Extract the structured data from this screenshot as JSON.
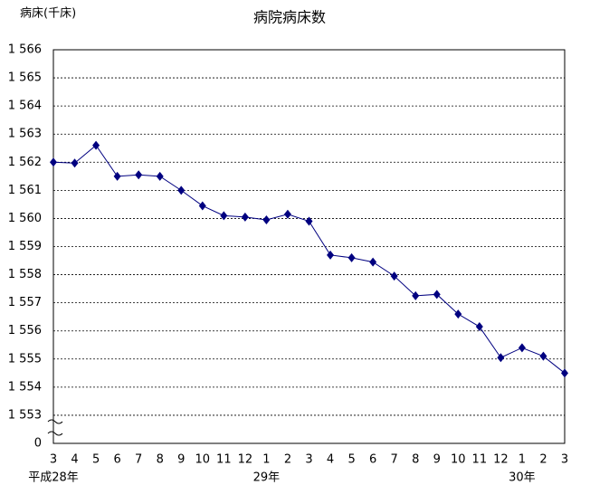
{
  "chart_data": {
    "type": "line",
    "title": "病院病床数",
    "y_label": "病床(千床)",
    "categories": [
      "3",
      "4",
      "5",
      "6",
      "7",
      "8",
      "9",
      "10",
      "11",
      "12",
      "1",
      "2",
      "3",
      "4",
      "5",
      "6",
      "7",
      "8",
      "9",
      "10",
      "11",
      "12",
      "1",
      "2",
      "3"
    ],
    "x_groups": [
      "平成28年",
      null,
      null,
      null,
      null,
      null,
      null,
      null,
      null,
      null,
      "29年",
      null,
      null,
      null,
      null,
      null,
      null,
      null,
      null,
      null,
      null,
      null,
      "30年",
      null,
      null
    ],
    "series": [
      {
        "name": "病院病床数",
        "color": "#000080",
        "values": [
          1562.0,
          1561.97,
          1562.6,
          1561.5,
          1561.55,
          1561.5,
          1561.0,
          1560.45,
          1560.1,
          1560.05,
          1559.95,
          1560.15,
          1559.9,
          1558.7,
          1558.6,
          1558.45,
          1557.95,
          1557.25,
          1557.3,
          1556.6,
          1556.15,
          1555.05,
          1555.4,
          1555.1,
          1554.5
        ]
      }
    ],
    "ylim": [
      1552,
      1566
    ],
    "yticks": [
      {
        "value": 1553,
        "label": "1 553"
      },
      {
        "value": 1554,
        "label": "1 554"
      },
      {
        "value": 1555,
        "label": "1 555"
      },
      {
        "value": 1556,
        "label": "1 556"
      },
      {
        "value": 1557,
        "label": "1 557"
      },
      {
        "value": 1558,
        "label": "1 558"
      },
      {
        "value": 1559,
        "label": "1 559"
      },
      {
        "value": 1560,
        "label": "1 560"
      },
      {
        "value": 1561,
        "label": "1 561"
      },
      {
        "value": 1562,
        "label": "1 562"
      },
      {
        "value": 1563,
        "label": "1 563"
      },
      {
        "value": 1564,
        "label": "1 564"
      },
      {
        "value": 1565,
        "label": "1 565"
      },
      {
        "value": 1566,
        "label": "1 566"
      }
    ],
    "axis_break_label": "0",
    "grid": true
  }
}
